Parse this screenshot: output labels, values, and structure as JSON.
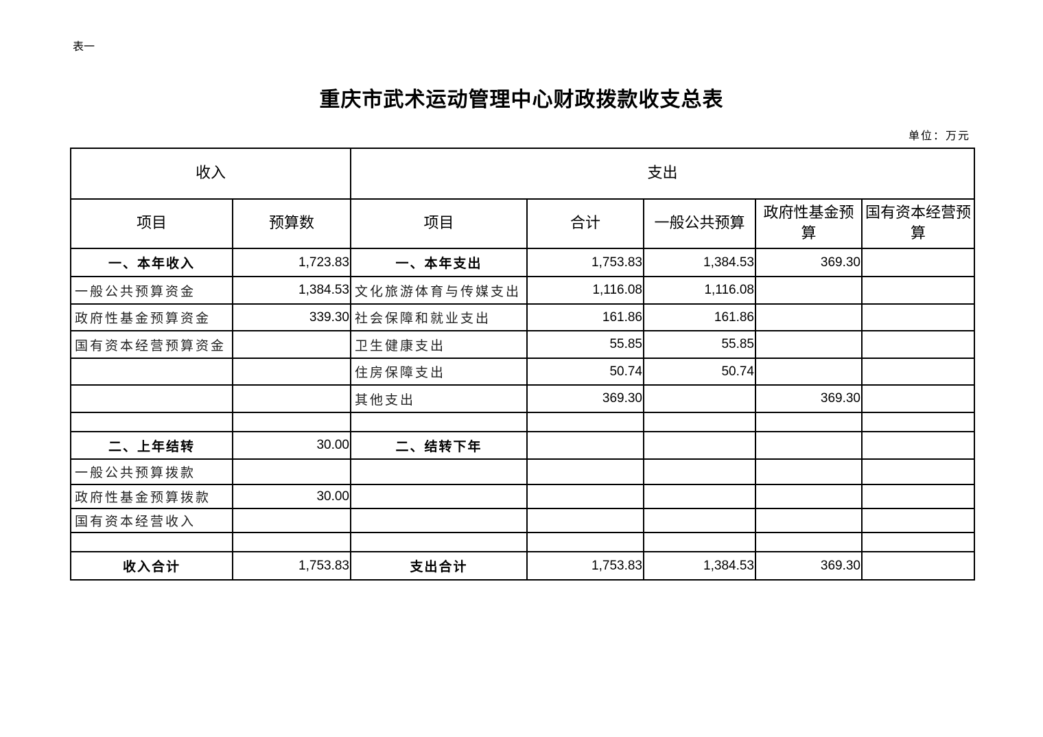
{
  "doc": {
    "tag": "表一",
    "title": "重庆市武术运动管理中心财政拨款收支总表",
    "unit": "单位：万元"
  },
  "table": {
    "group_headers": [
      "收入",
      "支出"
    ],
    "columns": [
      "项目",
      "预算数",
      "项目",
      "合计",
      "一般公共预算",
      "政府性基金预算",
      "国有资本经营预算"
    ],
    "rows": [
      {
        "kind": "sec",
        "cells": [
          "一、本年收入",
          "1,723.83",
          "一、本年支出",
          "1,753.83",
          "1,384.53",
          "369.30",
          ""
        ]
      },
      {
        "kind": "lbl",
        "cells": [
          "一般公共预算资金",
          "1,384.53",
          "文化旅游体育与传媒支出",
          "1,116.08",
          "1,116.08",
          "",
          ""
        ]
      },
      {
        "kind": "lbl",
        "cells": [
          "政府性基金预算资金",
          "339.30",
          "社会保障和就业支出",
          "161.86",
          "161.86",
          "",
          ""
        ]
      },
      {
        "kind": "lbl",
        "cells": [
          "国有资本经营预算资金",
          "",
          "卫生健康支出",
          "55.85",
          "55.85",
          "",
          ""
        ]
      },
      {
        "kind": "lbl",
        "cells": [
          "",
          "",
          "住房保障支出",
          "50.74",
          "50.74",
          "",
          ""
        ]
      },
      {
        "kind": "lbl",
        "cells": [
          "",
          "",
          "其他支出",
          "369.30",
          "",
          "369.30",
          ""
        ]
      },
      {
        "kind": "lbl",
        "cells": [
          "",
          "",
          "",
          "",
          "",
          "",
          ""
        ]
      },
      {
        "kind": "sec",
        "cells": [
          "二、上年结转",
          "30.00",
          "二、结转下年",
          "",
          "",
          "",
          ""
        ]
      },
      {
        "kind": "lbl",
        "cells": [
          "一般公共预算拨款",
          "",
          "",
          "",
          "",
          "",
          ""
        ]
      },
      {
        "kind": "lbl",
        "cells": [
          "政府性基金预算拨款",
          "30.00",
          "",
          "",
          "",
          "",
          ""
        ]
      },
      {
        "kind": "lbl",
        "cells": [
          "国有资本经营收入",
          "",
          "",
          "",
          "",
          "",
          ""
        ]
      },
      {
        "kind": "lbl",
        "cells": [
          "",
          "",
          "",
          "",
          "",
          "",
          ""
        ]
      },
      {
        "kind": "sec",
        "cells": [
          "收入合计",
          "1,753.83",
          "支出合计",
          "1,753.83",
          "1,384.53",
          "369.30",
          ""
        ]
      }
    ]
  }
}
